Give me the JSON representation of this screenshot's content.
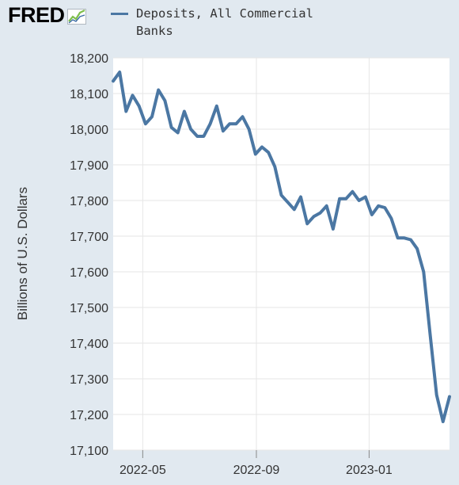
{
  "logo": {
    "text": "FRED",
    "icon": "fred-chart-logo-icon"
  },
  "legend": {
    "label": "Deposits, All Commercial Banks",
    "color": "#4b77a3"
  },
  "chart_data": {
    "type": "line",
    "title": "",
    "xlabel": "",
    "ylabel": "Billions of U.S. Dollars",
    "ylim": [
      17100,
      18200
    ],
    "yticks": [
      17100,
      17200,
      17300,
      17400,
      17500,
      17600,
      17700,
      17800,
      17900,
      18000,
      18100,
      18200
    ],
    "ytick_labels": [
      "17,100",
      "17,200",
      "17,300",
      "17,400",
      "17,500",
      "17,600",
      "17,700",
      "17,800",
      "17,900",
      "18,000",
      "18,100",
      "18,200"
    ],
    "xlim": [
      "2022-03-30",
      "2023-03-29"
    ],
    "xticks": [
      "2022-05-01",
      "2022-09-01",
      "2023-01-01"
    ],
    "xtick_labels": [
      "2022-05",
      "2022-09",
      "2023-01"
    ],
    "grid": true,
    "legend_position": "top",
    "series": [
      {
        "name": "Deposits, All Commercial Banks",
        "color": "#4b77a3",
        "x": [
          "2022-03-30",
          "2022-04-06",
          "2022-04-13",
          "2022-04-20",
          "2022-04-27",
          "2022-05-04",
          "2022-05-11",
          "2022-05-18",
          "2022-05-25",
          "2022-06-01",
          "2022-06-08",
          "2022-06-15",
          "2022-06-22",
          "2022-06-29",
          "2022-07-06",
          "2022-07-13",
          "2022-07-20",
          "2022-07-27",
          "2022-08-03",
          "2022-08-10",
          "2022-08-17",
          "2022-08-24",
          "2022-08-31",
          "2022-09-07",
          "2022-09-14",
          "2022-09-21",
          "2022-09-28",
          "2022-10-05",
          "2022-10-12",
          "2022-10-19",
          "2022-10-26",
          "2022-11-02",
          "2022-11-09",
          "2022-11-16",
          "2022-11-23",
          "2022-11-30",
          "2022-12-07",
          "2022-12-14",
          "2022-12-21",
          "2022-12-28",
          "2023-01-04",
          "2023-01-11",
          "2023-01-18",
          "2023-01-25",
          "2023-02-01",
          "2023-02-08",
          "2023-02-15",
          "2023-02-22",
          "2023-03-01",
          "2023-03-08",
          "2023-03-15",
          "2023-03-22",
          "2023-03-29"
        ],
        "values": [
          18135,
          18160,
          18050,
          18095,
          18065,
          18015,
          18035,
          18110,
          18080,
          18005,
          17990,
          18050,
          18000,
          17980,
          17980,
          18015,
          18065,
          17995,
          18015,
          18015,
          18035,
          18000,
          17930,
          17950,
          17935,
          17895,
          17815,
          17795,
          17775,
          17810,
          17735,
          17755,
          17765,
          17785,
          17720,
          17805,
          17805,
          17825,
          17800,
          17810,
          17760,
          17785,
          17780,
          17750,
          17695,
          17695,
          17690,
          17665,
          17600,
          17425,
          17255,
          17180,
          17250
        ]
      }
    ]
  }
}
